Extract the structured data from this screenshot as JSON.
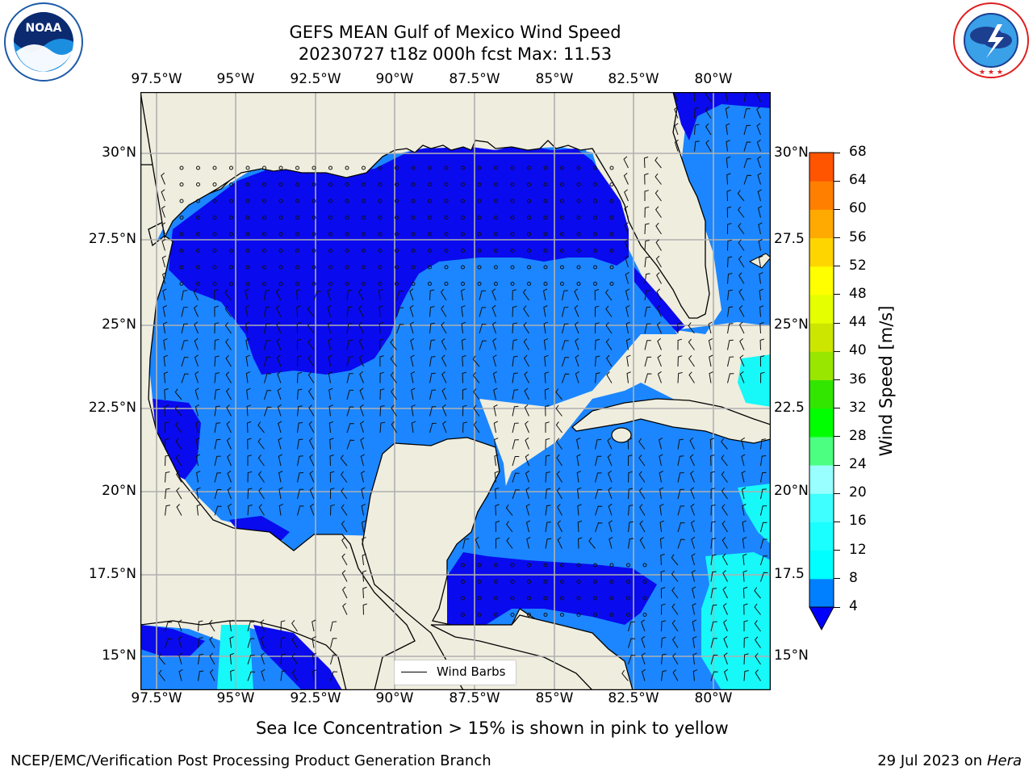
{
  "header": {
    "title_line1": "GEFS MEAN Gulf of Mexico Wind Speed",
    "title_line2": "20230727 t18z 000h fcst   Max: 11.53"
  },
  "logos": {
    "noaa_text": "NOAA",
    "noaa_ring_text": "NATIONAL OCEANIC AND ATMOSPHERIC ADMINISTRATION · U.S. DEPARTMENT OF COMMERCE",
    "nws_ring_text": "NATIONAL WEATHER SERVICE"
  },
  "map": {
    "lon_labels": [
      "97.5°W",
      "95°W",
      "92.5°W",
      "90°W",
      "87.5°W",
      "85°W",
      "82.5°W",
      "80°W"
    ],
    "lat_labels": [
      "30°N",
      "27.5°N",
      "25°N",
      "22.5°N",
      "20°N",
      "17.5°N",
      "15°N"
    ],
    "lat_labels_right": [
      "30°N",
      "27.5",
      "25°N",
      "22.5",
      "20°N",
      "17.5",
      "15°N"
    ],
    "legend_label": "Wind Barbs"
  },
  "colorbar": {
    "label": "Wind Speed [m/s]",
    "ticks": [
      "4",
      "8",
      "12",
      "16",
      "20",
      "24",
      "28",
      "32",
      "36",
      "40",
      "44",
      "48",
      "52",
      "56",
      "60",
      "64",
      "68"
    ],
    "colors": [
      "#0080ff",
      "#00ffff",
      "#1affff",
      "#40ffff",
      "#99ffff",
      "#4dff80",
      "#00ff00",
      "#33e600",
      "#99e600",
      "#cce600",
      "#e6ff00",
      "#ffff00",
      "#ffd500",
      "#ffaa00",
      "#ff8000",
      "#ff5500",
      "#ff2200",
      "#ff0000"
    ],
    "extend_color": "#0000ff"
  },
  "note": "Sea Ice Concentration > 15% is shown in pink to yellow",
  "footer": {
    "left": "NCEP/EMC/Verification Post Processing Product Generation Branch",
    "date": "29 Jul 2023 on",
    "machine": "Hera"
  },
  "colors": {
    "land": "#efedde",
    "wind_4_8": "#1b86ff",
    "wind_lt4": "#0a0aee",
    "wind_8_12": "#17f8f8",
    "grid": "#b0b0b0"
  }
}
